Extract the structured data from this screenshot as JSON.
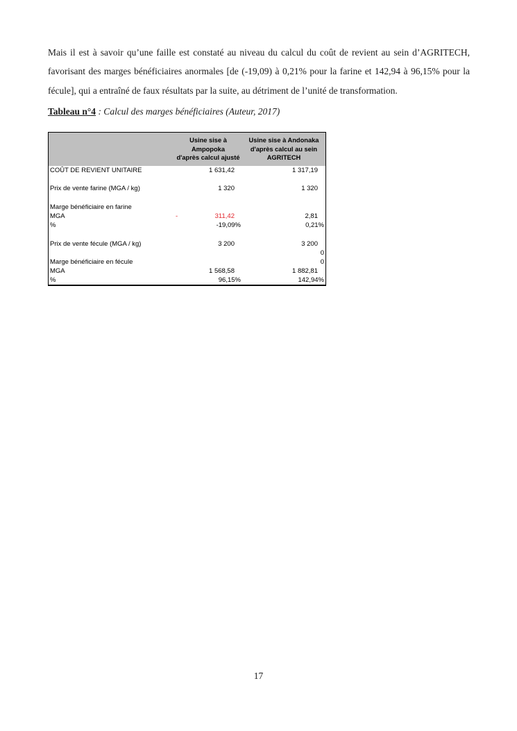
{
  "page": {
    "paragraph": "Mais il est à savoir qu’une faille est constaté au niveau du calcul du coût de revient au sein d’AGRITECH, favorisant des marges bénéficiaires anormales [de (-19,09) à 0,21% pour la farine et 142,94 à 96,15% pour la fécule], qui a entraîné de faux résultats par la suite, au détriment de l’unité de transformation.",
    "page_number": "17"
  },
  "caption": {
    "label": "Tableau n°4",
    "rest": " : Calcul des marges bénéficiaires (Auteur, 2017)"
  },
  "colors": {
    "header_bg": "#bfbfbf",
    "negative_red": "#e2262d",
    "border_color": "#000000",
    "text_color": "#1c1c1c"
  },
  "table": {
    "header": {
      "labels_col": "",
      "ampopoka": "Usine sise à Ampopoka\nd'après calcul ajusté",
      "agritech": "Usine sise à Andonaka\nd'après calcul au sein\nAGRITECH"
    },
    "rows": [
      {
        "label": "COÛT DE REVIENT UNITAIRE",
        "ampopoka": "1 631,42",
        "agritech": "1 317,19"
      },
      {
        "label": "",
        "ampopoka": "",
        "agritech": ""
      },
      {
        "label": "Prix de vente farine (MGA / kg)",
        "ampopoka": "1 320",
        "agritech": "1 320"
      },
      {
        "label": "",
        "ampopoka": "",
        "agritech": ""
      },
      {
        "label": "Marge bénéficiaire en farine",
        "ampopoka": "",
        "agritech": ""
      },
      {
        "label": "MGA",
        "ampopoka": "311,42",
        "ampopoka_negative": true,
        "agritech": "2,81"
      },
      {
        "label": "%",
        "ampopoka": "-19,09%",
        "ampopoka_format": "pct",
        "agritech": "0,21%",
        "agritech_format": "pct"
      },
      {
        "label": "",
        "ampopoka": "",
        "agritech": ""
      },
      {
        "label": "Prix de vente fécule (MGA / kg)",
        "ampopoka": "3 200",
        "agritech": "3 200"
      },
      {
        "label": "",
        "ampopoka": "",
        "agritech": "0",
        "agritech_format": "pct"
      },
      {
        "label": "Marge bénéficiaire en fécule",
        "ampopoka": "",
        "agritech": "0",
        "agritech_format": "pct"
      },
      {
        "label": "MGA",
        "ampopoka": "1 568,58",
        "agritech": "1 882,81"
      },
      {
        "label": "%",
        "ampopoka": "96,15%",
        "ampopoka_format": "pct",
        "agritech": "142,94%",
        "agritech_format": "pct"
      }
    ]
  }
}
